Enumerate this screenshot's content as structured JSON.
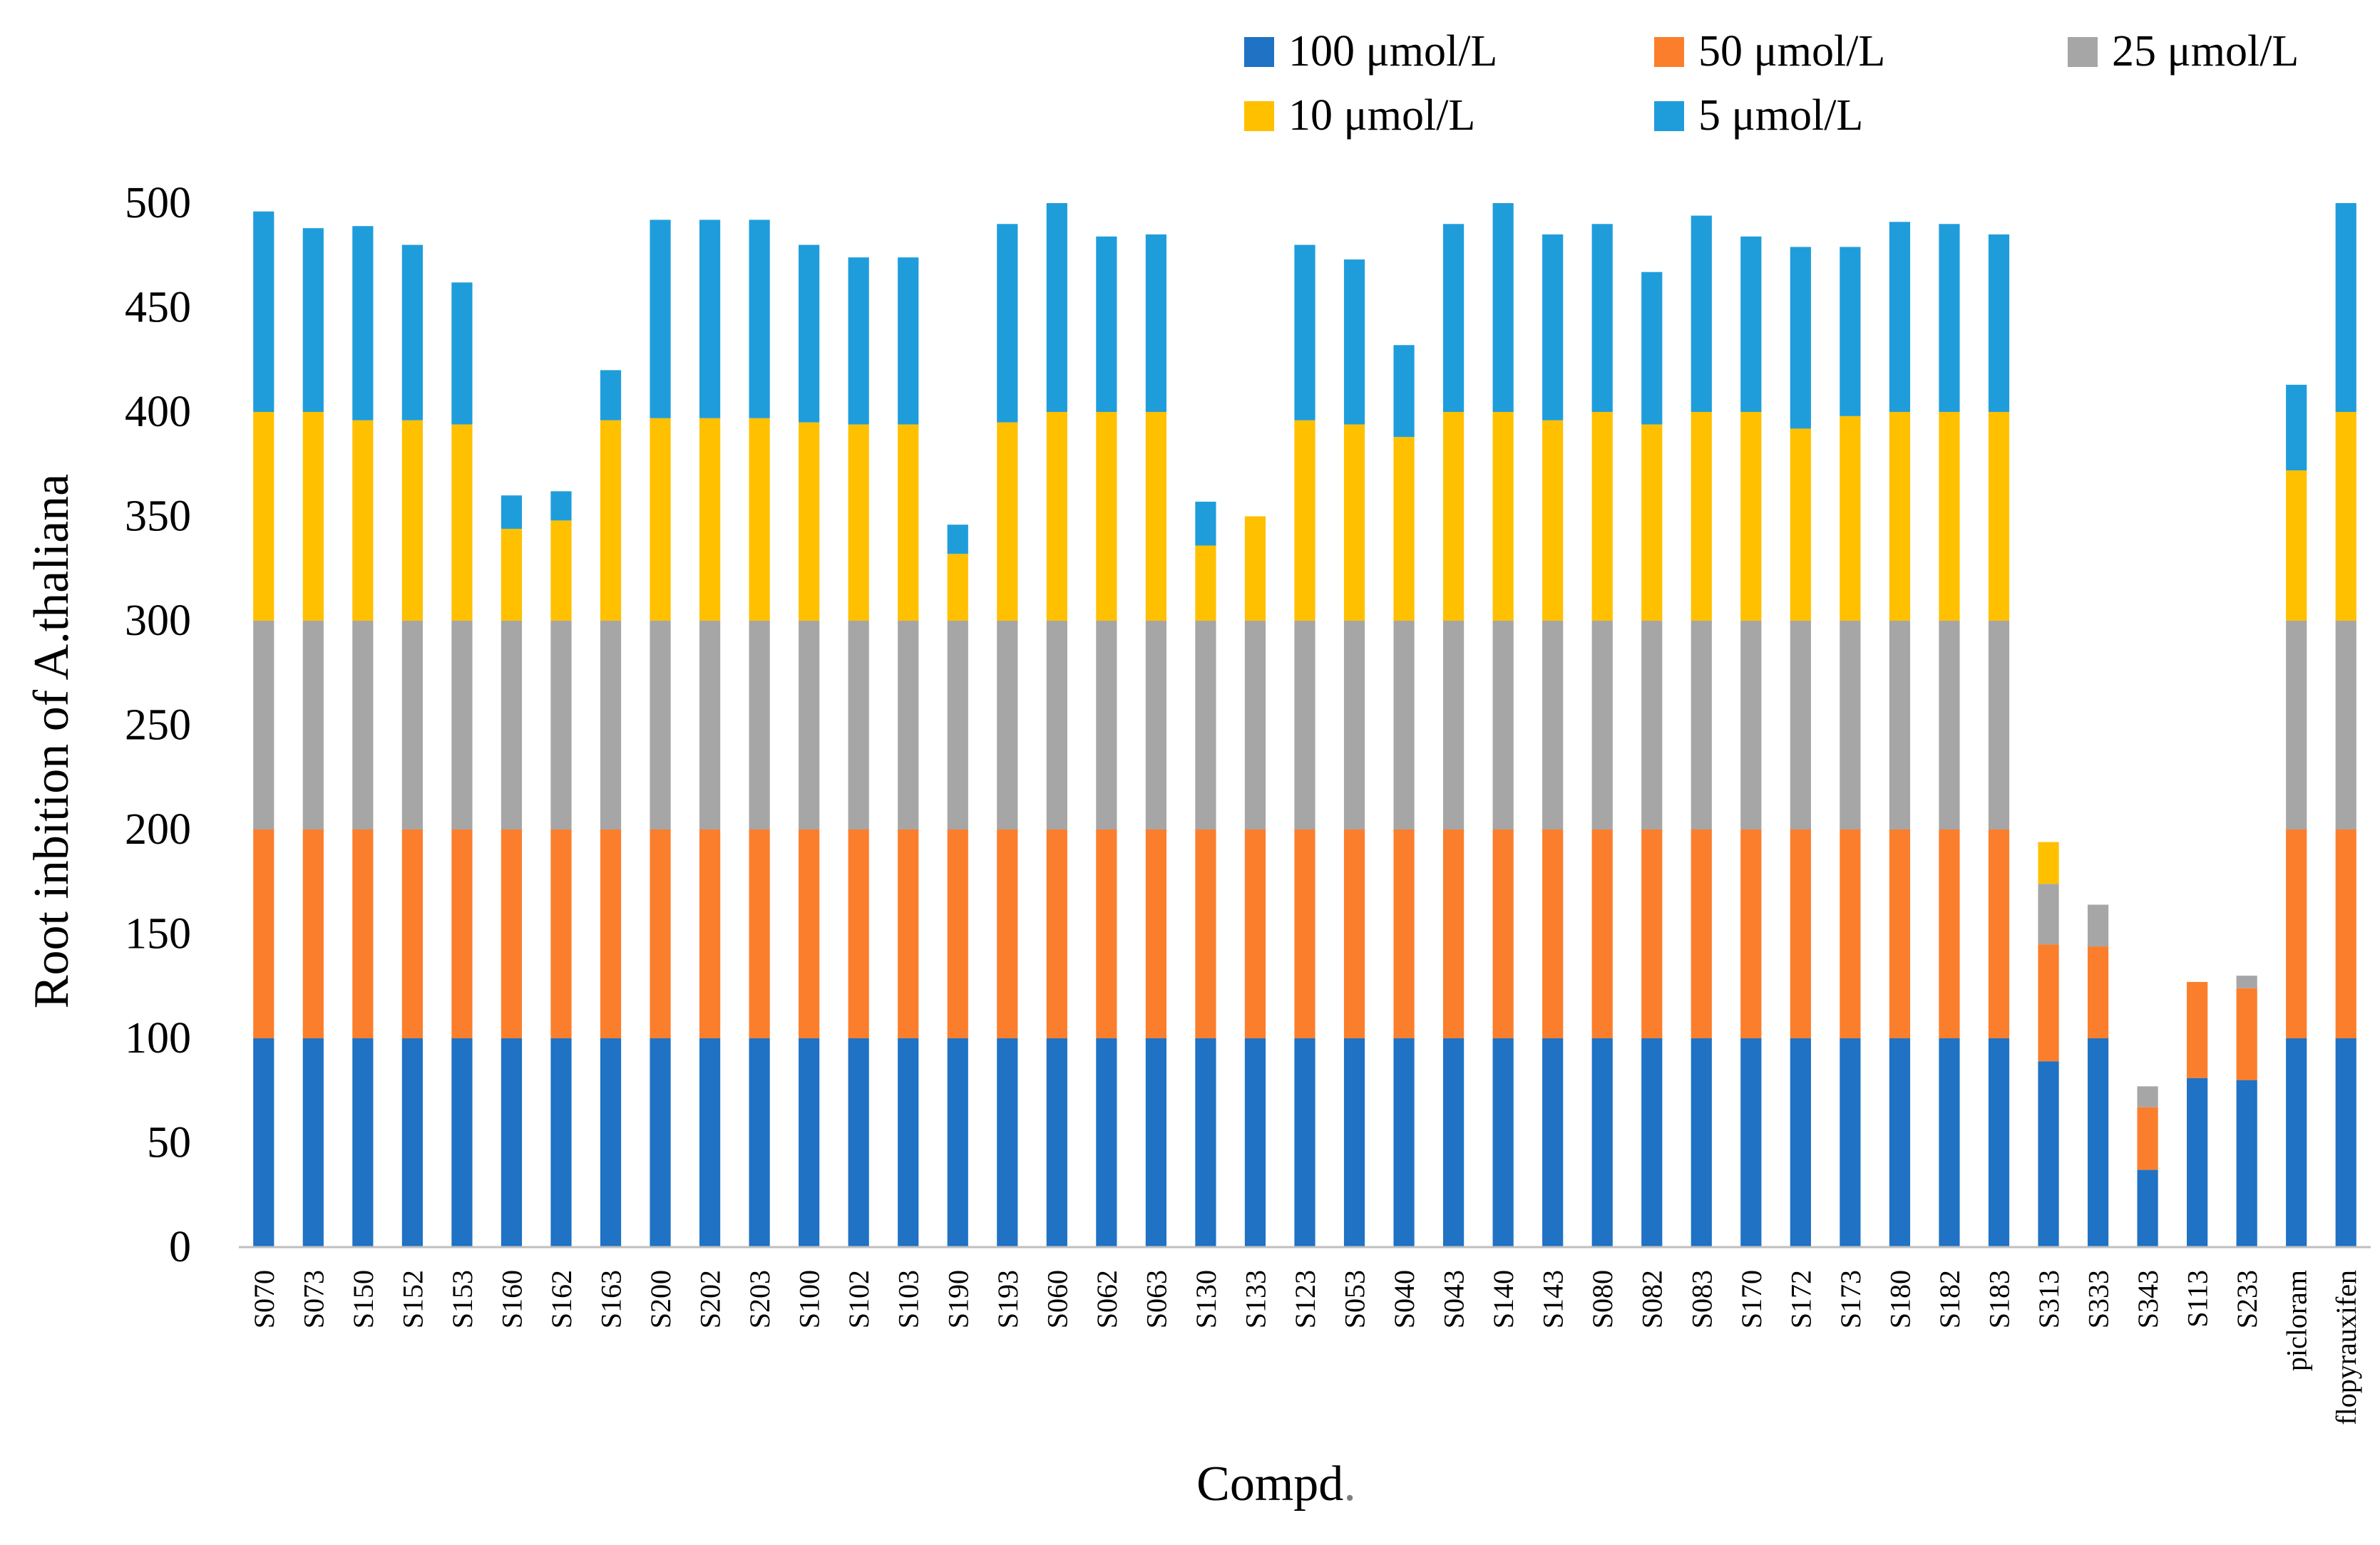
{
  "chart_data": {
    "type": "bar",
    "stacked": true,
    "title": "",
    "xlabel": "Compd",
    "xlabel_suffix": ".",
    "ylabel": "Root inbition of A.thaliana",
    "ylim": [
      0,
      500
    ],
    "yticks": [
      0,
      50,
      100,
      150,
      200,
      250,
      300,
      350,
      400,
      450,
      500
    ],
    "grid": false,
    "legend_position": "top",
    "categories": [
      "S070",
      "S073",
      "S150",
      "S152",
      "S153",
      "S160",
      "S162",
      "S163",
      "S200",
      "S202",
      "S203",
      "S100",
      "S102",
      "S103",
      "S190",
      "S193",
      "S060",
      "S062",
      "S063",
      "S130",
      "S133",
      "S123",
      "S053",
      "S040",
      "S043",
      "S140",
      "S143",
      "S080",
      "S082",
      "S083",
      "S170",
      "S172",
      "S173",
      "S180",
      "S182",
      "S183",
      "S313",
      "S333",
      "S343",
      "S113",
      "S233",
      "picloram",
      "flopyrauxifen"
    ],
    "series": [
      {
        "name": "100 μmol/L",
        "color": "#1F72C4",
        "values": [
          100,
          100,
          100,
          100,
          100,
          100,
          100,
          100,
          100,
          100,
          100,
          100,
          100,
          100,
          100,
          100,
          100,
          100,
          100,
          100,
          100,
          100,
          100,
          100,
          100,
          100,
          100,
          100,
          100,
          100,
          100,
          100,
          100,
          100,
          100,
          100,
          89,
          100,
          37,
          81,
          80,
          100,
          100
        ]
      },
      {
        "name": "50 μmol/L",
        "color": "#FB7E2C",
        "values": [
          100,
          100,
          100,
          100,
          100,
          100,
          100,
          100,
          100,
          100,
          100,
          100,
          100,
          100,
          100,
          100,
          100,
          100,
          100,
          100,
          100,
          100,
          100,
          100,
          100,
          100,
          100,
          100,
          100,
          100,
          100,
          100,
          100,
          100,
          100,
          100,
          56,
          44,
          30,
          46,
          44,
          100,
          100
        ]
      },
      {
        "name": "25 μmol/L",
        "color": "#A6A6A6",
        "values": [
          100,
          100,
          100,
          100,
          100,
          100,
          100,
          100,
          100,
          100,
          100,
          100,
          100,
          100,
          100,
          100,
          100,
          100,
          100,
          100,
          100,
          100,
          100,
          100,
          100,
          100,
          100,
          100,
          100,
          100,
          100,
          100,
          100,
          100,
          100,
          100,
          29,
          20,
          10,
          0,
          6,
          100,
          100
        ]
      },
      {
        "name": "10 μmol/L",
        "color": "#FFC000",
        "values": [
          100,
          100,
          96,
          96,
          94,
          44,
          48,
          96,
          97,
          97,
          97,
          95,
          94,
          94,
          32,
          95,
          100,
          100,
          100,
          36,
          50,
          96,
          94,
          88,
          100,
          100,
          96,
          100,
          94,
          100,
          100,
          92,
          98,
          100,
          100,
          100,
          20,
          0,
          0,
          0,
          0,
          72,
          100
        ]
      },
      {
        "name": "5 μmol/L",
        "color": "#1F9DDB",
        "values": [
          96,
          88,
          93,
          84,
          68,
          16,
          14,
          24,
          95,
          95,
          95,
          85,
          80,
          80,
          14,
          95,
          100,
          84,
          85,
          21,
          0,
          84,
          79,
          44,
          90,
          100,
          89,
          90,
          73,
          94,
          84,
          87,
          81,
          91,
          90,
          85,
          0,
          0,
          0,
          0,
          0,
          41,
          100
        ]
      }
    ]
  }
}
